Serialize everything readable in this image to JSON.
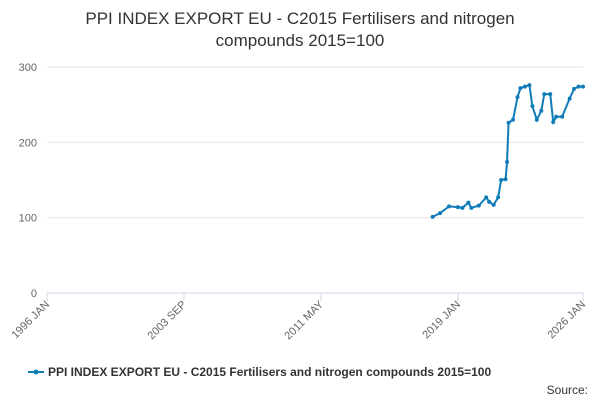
{
  "chart_data": {
    "type": "line",
    "title": "PPI INDEX EXPORT EU - C2015 Fertilisers and nitrogen compounds 2015=100",
    "source": "Source:",
    "x": [
      "2017-08",
      "2018-01",
      "2018-07",
      "2019-01",
      "2019-04",
      "2019-08",
      "2019-10",
      "2020-03",
      "2020-08",
      "2020-10",
      "2021-01",
      "2021-04",
      "2021-06",
      "2021-09",
      "2021-10",
      "2021-11",
      "2022-02",
      "2022-05",
      "2022-07",
      "2022-10",
      "2023-01",
      "2023-03",
      "2023-06",
      "2023-09",
      "2023-11",
      "2024-03",
      "2024-05",
      "2024-07",
      "2024-11",
      "2025-04",
      "2025-07",
      "2025-10",
      "2026-01"
    ],
    "series": [
      {
        "name": "PPI INDEX EXPORT EU - C2015 Fertilisers and nitrogen compounds 2015=100",
        "color": "#0f7cb8",
        "values": [
          101,
          106,
          115,
          114,
          113,
          120,
          113,
          116,
          127,
          121,
          117,
          127,
          150,
          151,
          174,
          226,
          230,
          260,
          272,
          274,
          276,
          248,
          230,
          242,
          264,
          264,
          227,
          234,
          234,
          258,
          271,
          274,
          274
        ]
      }
    ],
    "xlim": [
      "1996-01",
      "2026-01"
    ],
    "xticks": [
      {
        "value": "1996-01",
        "label": "1996 JAN"
      },
      {
        "value": "2003-09",
        "label": "2003 SEP"
      },
      {
        "value": "2011-05",
        "label": "2011 MAY"
      },
      {
        "value": "2019-01",
        "label": "2019 JAN"
      },
      {
        "value": "2026-01",
        "label": "2026 JAN"
      }
    ],
    "ylim": [
      0,
      300
    ],
    "yticks": [
      0,
      100,
      200,
      300
    ],
    "grid": true,
    "legend": "bottom"
  }
}
